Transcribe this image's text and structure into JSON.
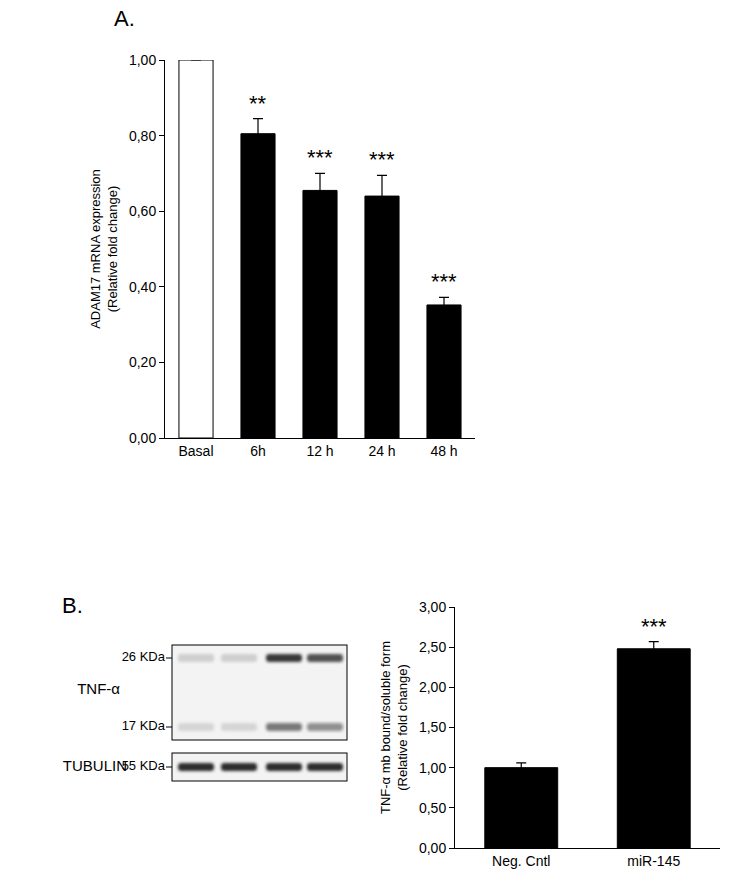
{
  "panel_labels": [
    "A.",
    "B."
  ],
  "chart_data": [
    {
      "type": "bar",
      "ylabel": "ADAM17 mRNA expression\n(Relative fold change)",
      "categories": [
        "Basal",
        "6h",
        "12 h",
        "24 h",
        "48 h"
      ],
      "values": [
        1.0,
        0.805,
        0.655,
        0.64,
        0.352
      ],
      "errors": [
        0,
        0.04,
        0.045,
        0.055,
        0.02
      ],
      "colors": [
        "#ffffff",
        "#000000",
        "#000000",
        "#000000",
        "#000000"
      ],
      "ylim": [
        0,
        1
      ],
      "yticks": [
        {
          "value": 0,
          "label": "0,00"
        },
        {
          "value": 0.2,
          "label": "0,20"
        },
        {
          "value": 0.4,
          "label": "0,40"
        },
        {
          "value": 0.6,
          "label": "0,60"
        },
        {
          "value": 0.8,
          "label": "0,80"
        },
        {
          "value": 1,
          "label": "1,00"
        }
      ],
      "grid": false,
      "annotations": [
        {
          "category": "6h",
          "text": "**"
        },
        {
          "category": "12 h",
          "text": "***"
        },
        {
          "category": "24 h",
          "text": "***"
        },
        {
          "category": "48 h",
          "text": "***"
        }
      ]
    },
    {
      "type": "bar",
      "ylabel": "TNF-α mb bound/soluble form\n(Relative fold change)",
      "categories": [
        "Neg. Cntl",
        "miR-145"
      ],
      "values": [
        1.0,
        2.48
      ],
      "errors": [
        0.06,
        0.09
      ],
      "color": "#000000",
      "ylim": [
        0,
        3
      ],
      "yticks": [
        {
          "value": 0,
          "label": "0,00"
        },
        {
          "value": 0.5,
          "label": "0,50"
        },
        {
          "value": 1,
          "label": "1,00"
        },
        {
          "value": 1.5,
          "label": "1,50"
        },
        {
          "value": 2,
          "label": "2,00"
        },
        {
          "value": 2.5,
          "label": "2,50"
        },
        {
          "value": 3,
          "label": "3,00"
        }
      ],
      "grid": false,
      "annotations": [
        {
          "category": "miR-145",
          "text": "***"
        }
      ]
    }
  ],
  "blot": {
    "rows": [
      {
        "label": "TNF-α",
        "markers": [
          {
            "label": "26 KDa",
            "intensities": [
              0.15,
              0.15,
              0.85,
              0.75
            ]
          },
          {
            "label": "17 KDa",
            "intensities": [
              0.12,
              0.12,
              0.55,
              0.45
            ]
          }
        ]
      },
      {
        "label": "TUBULIN",
        "markers": [
          {
            "label": "55 KDa",
            "intensities": [
              0.9,
              0.9,
              0.9,
              0.9
            ]
          }
        ]
      }
    ]
  }
}
